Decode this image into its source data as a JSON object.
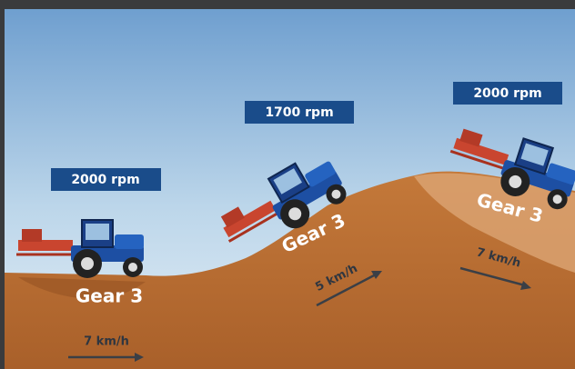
{
  "scenes": [
    {
      "rpm": "2000 rpm",
      "gear": "Gear 3",
      "speed": "7 km/h"
    },
    {
      "rpm": "1700 rpm",
      "gear": "Gear 3",
      "speed": "5 km/h"
    },
    {
      "rpm": "2000 rpm",
      "gear": "Gear 3",
      "speed": "7 km/h"
    }
  ]
}
